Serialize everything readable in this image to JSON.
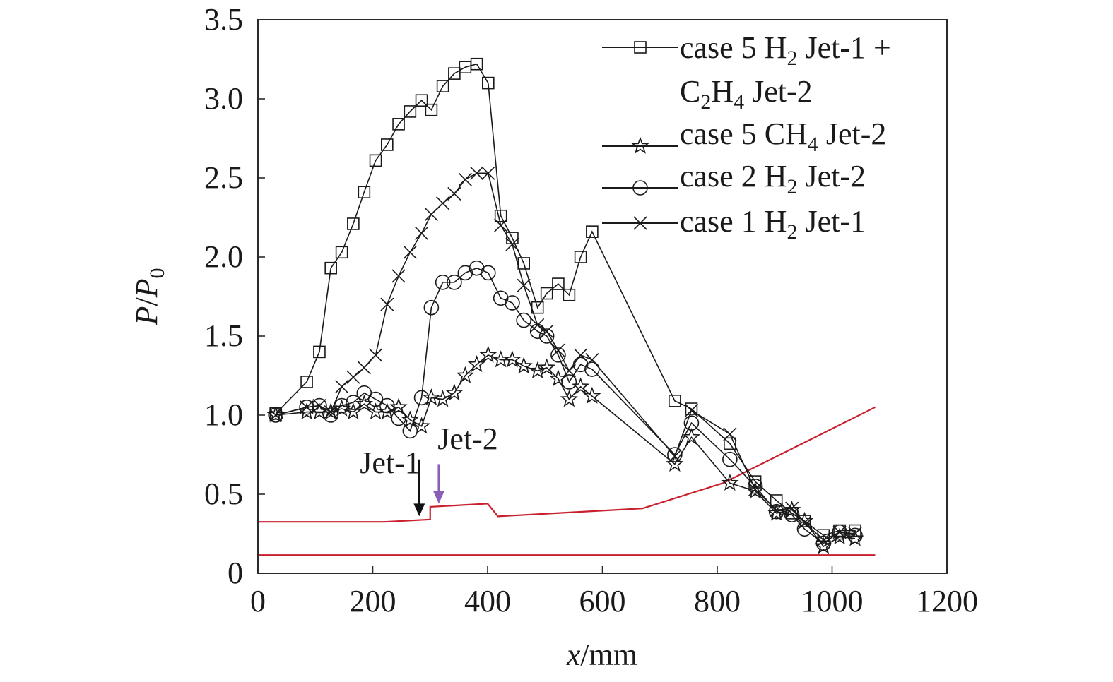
{
  "chart_data": {
    "type": "line",
    "title": "",
    "xlabel": "x/mm",
    "xlabel_parts": {
      "var": "x",
      "unit": "/mm"
    },
    "ylabel": "P/P0",
    "ylabel_parts": {
      "p": "P",
      "slash": "/",
      "p0": "P",
      "sub": "0"
    },
    "xlim": [
      0,
      1200
    ],
    "ylim": [
      0,
      3.5
    ],
    "xticks": [
      0,
      200,
      400,
      600,
      800,
      1000,
      1200
    ],
    "xtick_labels": [
      "0",
      "200",
      "400",
      "600",
      "800",
      "1000",
      "1200"
    ],
    "yticks": [
      0,
      0.5,
      1.0,
      1.5,
      2.0,
      2.5,
      3.0,
      3.5
    ],
    "ytick_labels": [
      "0",
      "0.5",
      "1.0",
      "1.5",
      "2.0",
      "2.5",
      "3.0",
      "3.5"
    ],
    "grid": false,
    "legend_position": "top-right",
    "series": [
      {
        "name": "case 5 H2 Jet-1 + C2H4 Jet-2",
        "legend_lines": [
          [
            {
              "t": "case 5 H"
            },
            {
              "t": "2",
              "sub": true
            },
            {
              "t": " Jet-1 +"
            }
          ],
          [
            {
              "t": "C"
            },
            {
              "t": "2",
              "sub": true
            },
            {
              "t": "H"
            },
            {
              "t": "4",
              "sub": true
            },
            {
              "t": " Jet-2"
            }
          ]
        ],
        "marker": "square",
        "x": [
          31,
          85,
          107,
          127,
          146,
          166,
          185,
          205,
          225,
          245,
          265,
          285,
          302,
          322,
          342,
          361,
          381,
          401,
          423,
          443,
          463,
          487,
          503,
          523,
          542,
          562,
          582,
          726,
          755,
          822,
          866,
          903,
          930,
          952,
          985,
          1013,
          1040
        ],
        "y": [
          1.01,
          1.21,
          1.4,
          1.93,
          2.03,
          2.21,
          2.41,
          2.61,
          2.71,
          2.84,
          2.92,
          2.99,
          2.93,
          3.08,
          3.16,
          3.2,
          3.22,
          3.1,
          2.26,
          2.12,
          1.96,
          1.68,
          1.77,
          1.83,
          1.76,
          2.0,
          2.16,
          1.09,
          1.04,
          0.82,
          0.58,
          0.46,
          0.38,
          0.33,
          0.24,
          0.27,
          0.27
        ]
      },
      {
        "name": "case 5 CH4 Jet-2",
        "legend_lines": [
          [
            {
              "t": "case 5 CH"
            },
            {
              "t": "4",
              "sub": true
            },
            {
              "t": " Jet-2"
            }
          ]
        ],
        "marker": "star",
        "x": [
          31,
          85,
          107,
          127,
          146,
          166,
          185,
          205,
          225,
          245,
          265,
          285,
          302,
          322,
          342,
          361,
          381,
          401,
          423,
          443,
          463,
          487,
          503,
          523,
          542,
          562,
          582,
          726,
          755,
          822,
          866,
          903,
          930,
          952,
          985,
          1013,
          1040
        ],
        "y": [
          1.0,
          1.02,
          1.02,
          1.02,
          1.04,
          1.02,
          1.07,
          1.02,
          1.02,
          1.05,
          0.97,
          0.93,
          1.11,
          1.1,
          1.14,
          1.25,
          1.32,
          1.38,
          1.35,
          1.35,
          1.31,
          1.28,
          1.3,
          1.23,
          1.1,
          1.18,
          1.12,
          0.69,
          0.86,
          0.57,
          0.52,
          0.38,
          0.4,
          0.33,
          0.17,
          0.23,
          0.22
        ]
      },
      {
        "name": "case 2 H2 Jet-2",
        "legend_lines": [
          [
            {
              "t": "case 2 H"
            },
            {
              "t": "2",
              "sub": true
            },
            {
              "t": " Jet-2"
            }
          ]
        ],
        "marker": "circle",
        "x": [
          31,
          85,
          107,
          127,
          146,
          166,
          185,
          205,
          225,
          245,
          265,
          285,
          302,
          322,
          342,
          361,
          381,
          401,
          423,
          443,
          463,
          487,
          503,
          523,
          542,
          562,
          582,
          726,
          755,
          822,
          866,
          903,
          930,
          952,
          985,
          1013,
          1040
        ],
        "y": [
          1.0,
          1.05,
          1.06,
          1.0,
          1.06,
          1.08,
          1.14,
          1.1,
          1.06,
          0.98,
          0.9,
          1.11,
          1.68,
          1.84,
          1.84,
          1.9,
          1.93,
          1.9,
          1.74,
          1.71,
          1.6,
          1.53,
          1.5,
          1.38,
          1.21,
          1.32,
          1.29,
          0.75,
          0.95,
          0.72,
          0.55,
          0.39,
          0.37,
          0.28,
          0.19,
          0.26,
          0.24
        ]
      },
      {
        "name": "case 1 H2 Jet-1",
        "legend_lines": [
          [
            {
              "t": "case 1 H"
            },
            {
              "t": "2",
              "sub": true
            },
            {
              "t": " Jet-1"
            }
          ]
        ],
        "marker": "x",
        "x": [
          31,
          85,
          107,
          127,
          146,
          166,
          185,
          205,
          225,
          245,
          265,
          285,
          302,
          322,
          342,
          361,
          381,
          401,
          423,
          443,
          463,
          487,
          503,
          523,
          542,
          562,
          582,
          726,
          755,
          822,
          866,
          903,
          930,
          952,
          985,
          1013,
          1040
        ],
        "y": [
          1.0,
          1.05,
          1.06,
          1.02,
          1.18,
          1.24,
          1.3,
          1.38,
          1.7,
          1.88,
          2.03,
          2.15,
          2.27,
          2.34,
          2.4,
          2.49,
          2.53,
          2.53,
          2.2,
          2.08,
          1.82,
          1.57,
          1.53,
          1.41,
          1.28,
          1.38,
          1.35,
          0.74,
          1.03,
          0.88,
          0.53,
          0.4,
          0.41,
          0.32,
          0.21,
          0.26,
          0.25
        ]
      }
    ],
    "reference_lines": [
      {
        "name": "upper-wall-profile",
        "color": "#c8202e",
        "x": [
          0,
          220,
          300,
          300,
          400,
          418,
          670,
          810,
          1075
        ],
        "y": [
          0.325,
          0.325,
          0.34,
          0.42,
          0.44,
          0.36,
          0.41,
          0.57,
          1.05
        ]
      },
      {
        "name": "lower-wall-profile",
        "color": "#c8202e",
        "x": [
          0,
          1075
        ],
        "y": [
          0.115,
          0.115
        ]
      }
    ],
    "annotations": [
      {
        "text": "Jet-1",
        "arrow_x": 281,
        "arrow_y_from": 0.72,
        "arrow_y_to": 0.36,
        "arrow_color": "#111111"
      },
      {
        "text": "Jet-2",
        "arrow_x": 315,
        "arrow_y_from": 0.69,
        "arrow_y_to": 0.44,
        "arrow_color": "#8a5fb8"
      }
    ]
  }
}
